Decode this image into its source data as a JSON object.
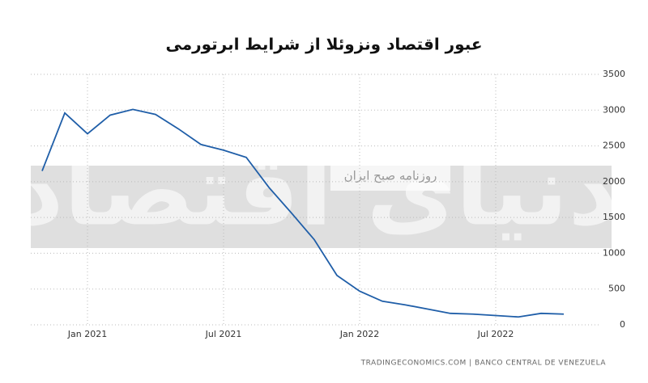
{
  "chart_data": {
    "type": "line",
    "title": "عبور اقتصاد ونزوئلا از شرایط ابرتورمی",
    "watermark": "دنیای اقتصاد",
    "watermark_subtitle": "روزنامه صبح ایران",
    "source": "TRADINGECONOMICS.COM | BANCO CENTRAL DE VENEZUELA",
    "x": [
      "2020-11",
      "2020-12",
      "2021-01",
      "2021-02",
      "2021-03",
      "2021-04",
      "2021-05",
      "2021-06",
      "2021-07",
      "2021-08",
      "2021-09",
      "2021-10",
      "2021-11",
      "2021-12",
      "2022-01",
      "2022-02",
      "2022-03",
      "2022-04",
      "2022-05",
      "2022-06",
      "2022-07",
      "2022-08",
      "2022-09",
      "2022-10"
    ],
    "values": [
      2150,
      2960,
      2670,
      2930,
      3010,
      2940,
      2740,
      2520,
      2440,
      2340,
      1920,
      1560,
      1190,
      690,
      470,
      330,
      280,
      220,
      160,
      150,
      130,
      110,
      160,
      150
    ],
    "color": "#1f5ea8",
    "xlim": [
      "2020-10",
      "2022-11"
    ],
    "xticks": [
      {
        "value": "2021-01",
        "label": "Jan 2021"
      },
      {
        "value": "2021-07",
        "label": "Jul 2021"
      },
      {
        "value": "2022-01",
        "label": "Jan 2022"
      },
      {
        "value": "2022-07",
        "label": "Jul 2022"
      }
    ],
    "ylim": [
      0,
      3500
    ],
    "yticks": [
      0,
      500,
      1000,
      1500,
      2000,
      2500,
      3000,
      3500
    ],
    "grid": true
  }
}
